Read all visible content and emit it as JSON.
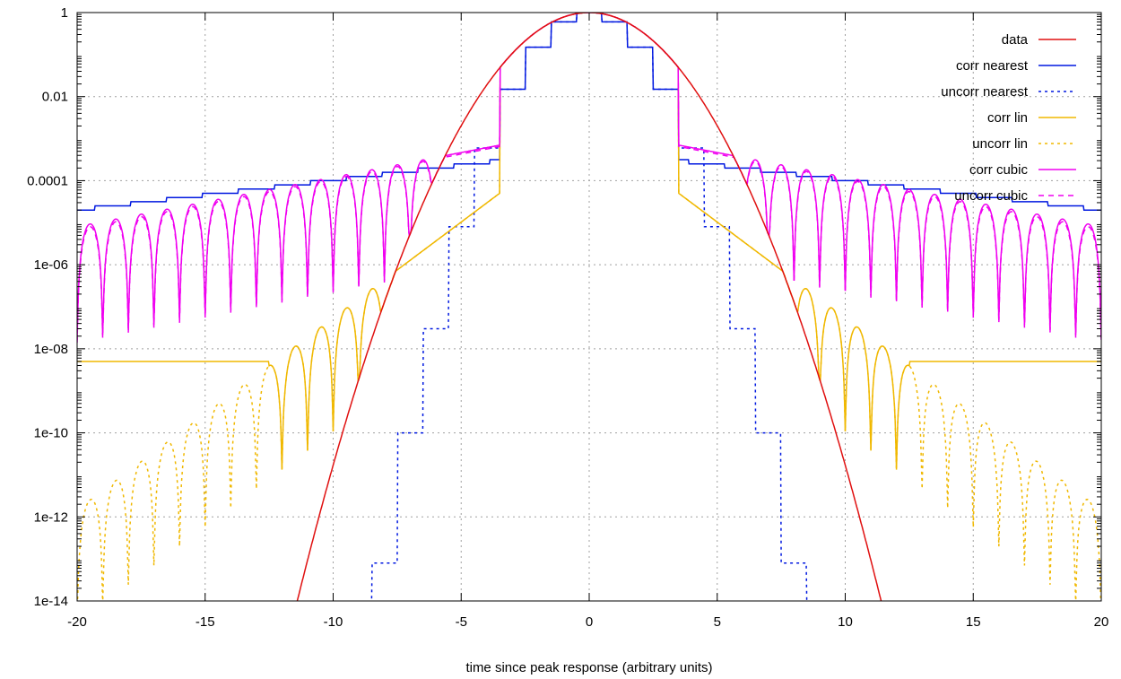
{
  "chart_data": {
    "type": "line",
    "title": "",
    "xlabel": "time since peak response (arbitrary units)",
    "ylabel": "",
    "xlim": [
      -20,
      20
    ],
    "ylim": [
      1e-14,
      1
    ],
    "y_scale": "log",
    "grid": true,
    "legend_position": "top-right",
    "x_ticks": [
      -20,
      -15,
      -10,
      -5,
      0,
      5,
      10,
      15,
      20
    ],
    "x_tick_labels": [
      "-20",
      "-15",
      "-10",
      "-5",
      "0",
      "5",
      "10",
      "15",
      "20"
    ],
    "y_ticks": [
      1,
      0.01,
      0.0001,
      1e-06,
      1e-08,
      1e-10,
      1e-12,
      1e-14
    ],
    "y_tick_labels": [
      "1",
      "0.01",
      "0.0001",
      "1e-06",
      "1e-08",
      "1e-10",
      "1e-12",
      "1e-14"
    ],
    "series": [
      {
        "name": "data",
        "color": "#e01010",
        "dash": "solid",
        "model": {
          "kind": "gaussian",
          "sigma": 1.42,
          "floor": 1e-15
        }
      },
      {
        "name": "corr nearest",
        "color": "#0018e0",
        "dash": "solid",
        "model": {
          "kind": "steps",
          "edges": [
            0.5,
            1.5,
            2.5,
            3.5
          ],
          "levels": [
            1.0,
            0.6,
            0.15,
            0.015
          ],
          "tail_start": 3.5,
          "tail_left": 0.0003,
          "tail_right": 2e-05
        }
      },
      {
        "name": "uncorr nearest",
        "color": "#0018e0",
        "dash": "dotted",
        "model": {
          "kind": "steps",
          "edges": [
            0.5,
            1.5,
            2.5,
            3.5,
            4.5,
            5.5,
            6.5,
            7.5,
            8.5
          ],
          "levels": [
            1.0,
            0.6,
            0.15,
            0.015,
            0.0006,
            8e-06,
            3e-08,
            1e-10,
            8e-14
          ]
        }
      },
      {
        "name": "corr lin",
        "color": "#f0b800",
        "dash": "solid",
        "model": {
          "kind": "lobes",
          "mainsigma": 1.42,
          "lobes_start": 3.5,
          "a0": 5e-05,
          "decay": 1.05,
          "floor": 5e-09,
          "floor_start": 12.5,
          "tail_ramp": 1.8
        }
      },
      {
        "name": "uncorr lin",
        "color": "#f0b800",
        "dash": "dotted",
        "model": {
          "kind": "lobes",
          "mainsigma": 1.42,
          "lobes_start": 3.5,
          "a0": 5e-05,
          "decay": 1.05,
          "floor": 0,
          "floor_start": 99,
          "tail_ramp": 0
        }
      },
      {
        "name": "corr cubic",
        "color": "#f000f0",
        "dash": "solid",
        "model": {
          "kind": "lobes",
          "mainsigma": 1.42,
          "lobes_start": 3.5,
          "a0": 0.0007,
          "decay": 0.27,
          "floor": 0,
          "floor_start": 99,
          "tail_ramp": 0
        }
      },
      {
        "name": "uncorr cubic",
        "color": "#f000f0",
        "dash": "dashed",
        "model": {
          "kind": "lobes",
          "mainsigma": 1.42,
          "lobes_start": 3.5,
          "a0": 0.00065,
          "decay": 0.275,
          "floor": 0,
          "floor_start": 99,
          "tail_ramp": 0
        }
      }
    ]
  }
}
